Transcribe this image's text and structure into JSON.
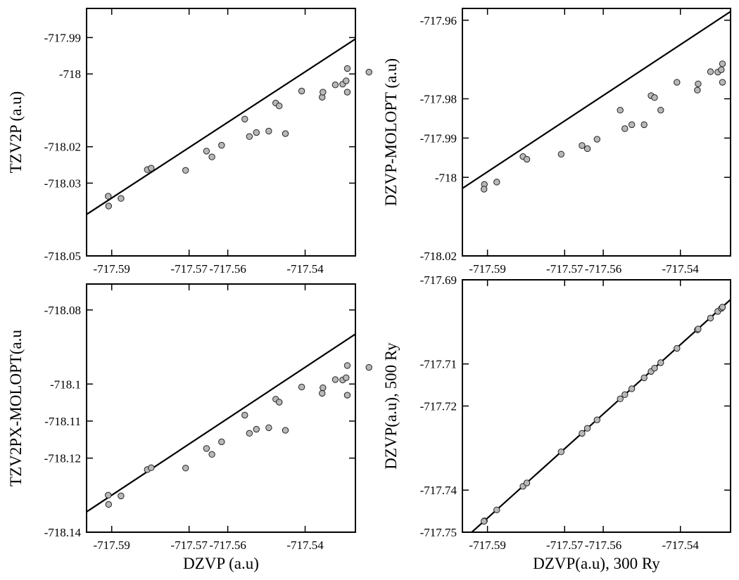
{
  "chart_data": [
    {
      "type": "scatter",
      "xlabel": "",
      "ylabel": "TZV2P (a.u)",
      "xlim": [
        -717.5965,
        -717.527
      ],
      "ylim": [
        -718.05,
        -717.982
      ],
      "xticks": [
        -717.59,
        -717.57,
        -717.56,
        -717.54
      ],
      "xtick_labels": [
        "-717.59",
        "-717.57",
        "-717.56",
        "-717.54"
      ],
      "yticks": [
        -718.05,
        -718.03,
        -718.02,
        -718.0,
        -717.99
      ],
      "ytick_labels": [
        "-718.05",
        "-718.03",
        "-718.02",
        "-718",
        "-717.99"
      ],
      "points": [
        [
          -717.5908,
          -718.0363
        ],
        [
          -717.5909,
          -718.0336
        ],
        [
          -717.5876,
          -718.0342
        ],
        [
          -717.5808,
          -718.0263
        ],
        [
          -717.5798,
          -718.0259
        ],
        [
          -717.5709,
          -718.0265
        ],
        [
          -717.5655,
          -718.0212
        ],
        [
          -717.5641,
          -718.0228
        ],
        [
          -717.5616,
          -718.0196
        ],
        [
          -717.5556,
          -718.0124
        ],
        [
          -717.5544,
          -718.0172
        ],
        [
          -717.5526,
          -718.0161
        ],
        [
          -717.5494,
          -718.0157
        ],
        [
          -717.5476,
          -718.008
        ],
        [
          -717.5467,
          -718.0088
        ],
        [
          -717.5451,
          -718.0164
        ],
        [
          -717.5409,
          -718.0047
        ],
        [
          -717.5356,
          -718.0064
        ],
        [
          -717.5354,
          -718.005
        ],
        [
          -717.5322,
          -718.003
        ],
        [
          -717.5303,
          -718.0028
        ],
        [
          -717.5294,
          -718.0019
        ],
        [
          -717.5291,
          -718.005
        ],
        [
          -717.5291,
          -717.9985
        ],
        [
          -717.5235,
          -717.9995
        ]
      ],
      "fit": [
        [
          -717.5965,
          -718.0386
        ],
        [
          -717.527,
          -717.9904
        ]
      ]
    },
    {
      "type": "scatter",
      "xlabel": "",
      "ylabel": "DZVP-MOLOPT (a.u)",
      "xlim": [
        -717.5965,
        -717.527
      ],
      "ylim": [
        -718.02,
        -717.957
      ],
      "xticks": [
        -717.59,
        -717.57,
        -717.56,
        -717.54
      ],
      "xtick_labels": [
        "-717.59",
        "-717.57",
        "-717.56",
        "-717.54"
      ],
      "yticks": [
        -718.02,
        -718.0,
        -717.99,
        -717.98,
        -717.96
      ],
      "ytick_labels": [
        "-718.02",
        "-718",
        "-717.99",
        "-717.98",
        "-717.96"
      ],
      "points": [
        [
          -717.5908,
          -718.0018
        ],
        [
          -717.5909,
          -718.003
        ],
        [
          -717.5876,
          -718.0012
        ],
        [
          -717.5808,
          -717.9947
        ],
        [
          -717.5798,
          -717.9954
        ],
        [
          -717.5709,
          -717.9941
        ],
        [
          -717.5655,
          -717.9919
        ],
        [
          -717.5641,
          -717.9927
        ],
        [
          -717.5616,
          -717.9903
        ],
        [
          -717.5556,
          -717.9829
        ],
        [
          -717.5544,
          -717.9876
        ],
        [
          -717.5526,
          -717.9866
        ],
        [
          -717.5494,
          -717.9866
        ],
        [
          -717.5476,
          -717.9792
        ],
        [
          -717.5467,
          -717.9797
        ],
        [
          -717.5451,
          -717.9829
        ],
        [
          -717.5409,
          -717.9758
        ],
        [
          -717.5356,
          -717.9778
        ],
        [
          -717.5354,
          -717.9762
        ],
        [
          -717.5322,
          -717.9731
        ],
        [
          -717.5303,
          -717.9732
        ],
        [
          -717.5294,
          -717.9726
        ],
        [
          -717.5291,
          -717.9758
        ],
        [
          -717.5291,
          -717.9711
        ],
        [
          -717.5235,
          -717.971
        ]
      ],
      "fit": [
        [
          -717.5965,
          -718.0028
        ],
        [
          -717.527,
          -717.9578
        ]
      ]
    },
    {
      "type": "scatter",
      "xlabel": "DZVP (a.u)",
      "ylabel": "TZV2PX-MOLOPT(a.u",
      "xlim": [
        -717.5965,
        -717.527
      ],
      "ylim": [
        -718.14,
        -718.073
      ],
      "xticks": [
        -717.59,
        -717.57,
        -717.56,
        -717.54
      ],
      "xtick_labels": [
        "-717.59",
        "-717.57",
        "-717.56",
        "-717.54"
      ],
      "yticks": [
        -718.14,
        -718.12,
        -718.11,
        -718.1,
        -718.08
      ],
      "ytick_labels": [
        "-718.14",
        "-718.12",
        "-718.11",
        "-718.1",
        "-718.08"
      ],
      "points": [
        [
          -717.5908,
          -718.1325
        ],
        [
          -717.5909,
          -718.13
        ],
        [
          -717.5876,
          -718.1302
        ],
        [
          -717.5808,
          -718.1231
        ],
        [
          -717.5798,
          -718.1226
        ],
        [
          -717.5709,
          -718.1227
        ],
        [
          -717.5655,
          -718.1174
        ],
        [
          -717.5641,
          -718.119
        ],
        [
          -717.5616,
          -718.1156
        ],
        [
          -717.5556,
          -718.1084
        ],
        [
          -717.5544,
          -718.1133
        ],
        [
          -717.5526,
          -718.1122
        ],
        [
          -717.5494,
          -718.1118
        ],
        [
          -717.5476,
          -718.1041
        ],
        [
          -717.5467,
          -718.1049
        ],
        [
          -717.5451,
          -718.1125
        ],
        [
          -717.5409,
          -718.1008
        ],
        [
          -717.5356,
          -718.1025
        ],
        [
          -717.5354,
          -718.101
        ],
        [
          -717.5322,
          -718.0988
        ],
        [
          -717.5303,
          -718.0989
        ],
        [
          -717.5294,
          -718.0983
        ],
        [
          -717.5291,
          -718.103
        ],
        [
          -717.5291,
          -718.095
        ],
        [
          -717.5235,
          -718.0955
        ]
      ],
      "fit": [
        [
          -717.5965,
          -718.1345
        ],
        [
          -717.527,
          -718.0865
        ]
      ]
    },
    {
      "type": "scatter",
      "xlabel": "DZVP(a.u), 300 Ry",
      "ylabel": "DZVP(a.u), 500 Ry",
      "xlim": [
        -717.5965,
        -717.527
      ],
      "ylim": [
        -717.75,
        -717.69
      ],
      "xticks": [
        -717.59,
        -717.57,
        -717.56,
        -717.54
      ],
      "xtick_labels": [
        "-717.59",
        "-717.57",
        "-717.56",
        "-717.54"
      ],
      "yticks": [
        -717.75,
        -717.74,
        -717.72,
        -717.71,
        -717.69
      ],
      "ytick_labels": [
        "-717.75",
        "-717.74",
        "-717.72",
        "-717.71",
        "-717.69"
      ],
      "points": [
        [
          -717.5908,
          -717.7473
        ],
        [
          -717.5909,
          -717.7474
        ],
        [
          -717.5876,
          -717.7447
        ],
        [
          -717.5808,
          -717.7391
        ],
        [
          -717.5798,
          -717.7383
        ],
        [
          -717.5709,
          -717.7309
        ],
        [
          -717.5655,
          -717.7265
        ],
        [
          -717.5641,
          -717.7253
        ],
        [
          -717.5616,
          -717.7233
        ],
        [
          -717.5556,
          -717.7183
        ],
        [
          -717.5544,
          -717.7173
        ],
        [
          -717.5526,
          -717.7159
        ],
        [
          -717.5494,
          -717.7133
        ],
        [
          -717.5476,
          -717.7118
        ],
        [
          -717.5467,
          -717.711
        ],
        [
          -717.5451,
          -717.7097
        ],
        [
          -717.5409,
          -717.7063
        ],
        [
          -717.5356,
          -717.7019
        ],
        [
          -717.5354,
          -717.7017
        ],
        [
          -717.5322,
          -717.6991
        ],
        [
          -717.5303,
          -717.6975
        ],
        [
          -717.5294,
          -717.6968
        ],
        [
          -717.5291,
          -717.6965
        ],
        [
          -717.5291,
          -717.6965
        ],
        [
          -717.5235,
          -717.6919
        ]
      ],
      "fit": [
        [
          -717.5965,
          -717.752
        ],
        [
          -717.527,
          -717.6947
        ]
      ]
    }
  ],
  "colors": {
    "axis": "#000000",
    "marker_fill": "#b8b8b8",
    "marker_stroke": "#222222",
    "fit_line": "#000000"
  }
}
